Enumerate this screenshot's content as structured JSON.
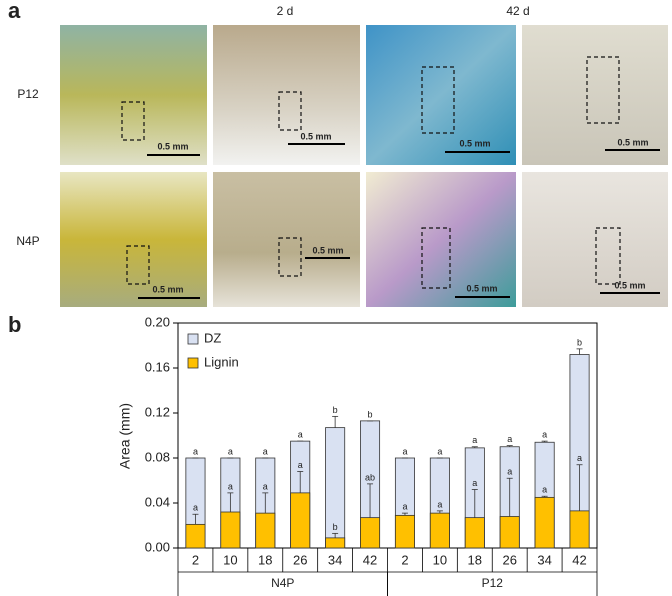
{
  "panel_a": {
    "label": "a",
    "columns": [
      "2 d",
      "42 d"
    ],
    "rows": [
      "P12",
      "N4P"
    ],
    "scale_bars": [
      "0.5 mm",
      "0.5 mm",
      "0.5 mm",
      "0.5 mm",
      "0.5 mm",
      "0.5 mm",
      "0.5 mm",
      "0.5 mm"
    ]
  },
  "chart_data": {
    "type": "bar",
    "panel_label": "b",
    "ylabel": "Area (mm)",
    "categories": [
      "2",
      "10",
      "18",
      "26",
      "34",
      "42",
      "2",
      "10",
      "18",
      "26",
      "34",
      "42"
    ],
    "groups": [
      {
        "name": "N4P",
        "span": 6
      },
      {
        "name": "P12",
        "span": 6
      }
    ],
    "series": [
      {
        "name": "DZ",
        "color": "#d9e1f2",
        "values": [
          0.08,
          0.08,
          0.08,
          0.095,
          0.107,
          0.113,
          0.08,
          0.08,
          0.089,
          0.09,
          0.094,
          0.172
        ],
        "errors": [
          0,
          0,
          0,
          0,
          0.01,
          0,
          0,
          0,
          0.001,
          0.001,
          0.001,
          0.005
        ],
        "letters": [
          "a",
          "a",
          "a",
          "a",
          "b",
          "b",
          "a",
          "a",
          "a",
          "a",
          "a",
          "b"
        ]
      },
      {
        "name": "Lignin",
        "color": "#ffc000",
        "values": [
          0.021,
          0.032,
          0.031,
          0.049,
          0.009,
          0.027,
          0.029,
          0.031,
          0.027,
          0.028,
          0.045,
          0.033
        ],
        "errors": [
          0.009,
          0.017,
          0.018,
          0.019,
          0.004,
          0.03,
          0.002,
          0.002,
          0.025,
          0.034,
          0.001,
          0.041
        ],
        "letters": [
          "a",
          "a",
          "a",
          "a",
          "b",
          "ab",
          "a",
          "a",
          "a",
          "a",
          "a",
          "a"
        ]
      }
    ],
    "ylim": [
      0,
      0.2
    ],
    "yticks": [
      {
        "value": 0,
        "label": "0.00"
      },
      {
        "value": 0.04,
        "label": "0.04"
      },
      {
        "value": 0.08,
        "label": "0.08"
      },
      {
        "value": 0.12,
        "label": "0.12"
      },
      {
        "value": 0.16,
        "label": "0.16"
      },
      {
        "value": 0.2,
        "label": "0.20"
      }
    ],
    "legend": "upper left"
  }
}
